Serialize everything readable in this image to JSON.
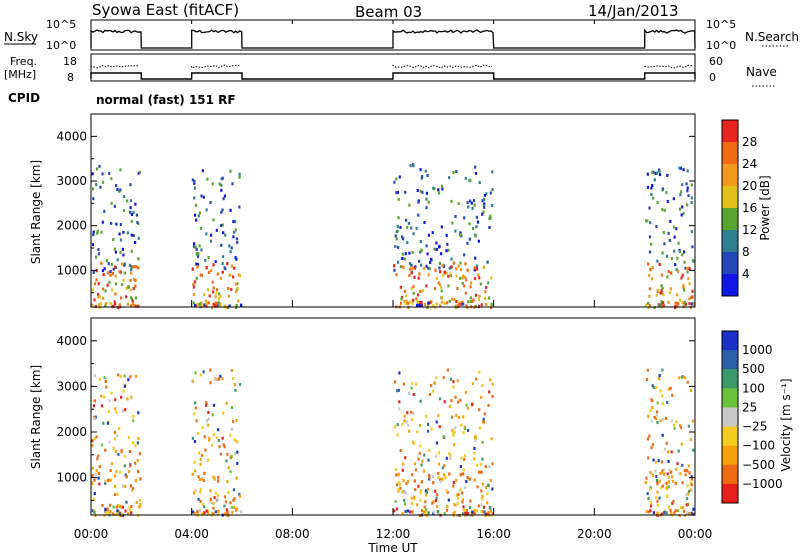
{
  "header": {
    "station": "Syowa East (fitACF)",
    "beam": "Beam 03",
    "date": "14/Jan/2013"
  },
  "panels": {
    "nsky": {
      "label": "N.Sky",
      "right_label": "N.Search",
      "ticks_left": [
        "10^5",
        "10^0"
      ],
      "ticks_right": [
        "10^5",
        "10^0"
      ]
    },
    "freq": {
      "label_top": "Freq.",
      "label_bottom": "[MHz]",
      "right_label": "Nave",
      "ticks_left": [
        "18",
        "8"
      ],
      "ticks_right": [
        "60",
        "0"
      ]
    },
    "cpid": {
      "label": "CPID",
      "text": "normal (fast) 151 RF"
    }
  },
  "colors": {
    "power": [
      "#0f17e6",
      "#2447b6",
      "#2f7f8f",
      "#5aa52f",
      "#e2c21a",
      "#f09a1a",
      "#f26b14",
      "#e8261f"
    ],
    "velocity": [
      "#e8201c",
      "#ef6a14",
      "#f7a20c",
      "#f5cb1f",
      "#c8c8c8",
      "#6ac23a",
      "#3c9a6a",
      "#2a5fa8",
      "#1a2fc8"
    ]
  },
  "chart_data": [
    {
      "type": "heatmap",
      "title": "",
      "xlabel": "",
      "ylabel": "Slant Range [km]",
      "xlim": [
        "00:00",
        "24:00"
      ],
      "ylim": [
        180,
        4500
      ],
      "yticks": [
        "1000",
        "2000",
        "3000",
        "4000"
      ],
      "colorbar": {
        "label": "Power [dB]",
        "ticks": [
          "4",
          "8",
          "12",
          "16",
          "20",
          "24",
          "28"
        ],
        "range": [
          0,
          32
        ]
      },
      "echo_regions": [
        {
          "start": "00:00",
          "end": "02:00",
          "range_km": [
            200,
            3400
          ]
        },
        {
          "start": "04:00",
          "end": "06:00",
          "range_km": [
            200,
            3400
          ]
        },
        {
          "start": "12:00",
          "end": "16:00",
          "range_km": [
            200,
            3400
          ]
        },
        {
          "start": "22:00",
          "end": "24:00",
          "range_km": [
            200,
            3400
          ]
        }
      ]
    },
    {
      "type": "heatmap",
      "title": "",
      "xlabel": "Time UT",
      "ylabel": "Slant Range [km]",
      "xlim": [
        "00:00",
        "24:00"
      ],
      "ylim": [
        180,
        4500
      ],
      "xticks": [
        "00:00",
        "04:00",
        "08:00",
        "12:00",
        "16:00",
        "20:00",
        "00:00"
      ],
      "yticks": [
        "1000",
        "2000",
        "3000",
        "4000"
      ],
      "colorbar": {
        "label": "Velocity [m s⁻¹]",
        "ticks": [
          "1000",
          "500",
          "100",
          "25",
          "−25",
          "−100",
          "−500",
          "−1000"
        ]
      },
      "echo_regions": [
        {
          "start": "00:00",
          "end": "02:00",
          "range_km": [
            200,
            3400
          ]
        },
        {
          "start": "04:00",
          "end": "06:00",
          "range_km": [
            200,
            3400
          ]
        },
        {
          "start": "12:00",
          "end": "16:00",
          "range_km": [
            200,
            3400
          ]
        },
        {
          "start": "22:00",
          "end": "24:00",
          "range_km": [
            200,
            3400
          ]
        }
      ]
    }
  ]
}
